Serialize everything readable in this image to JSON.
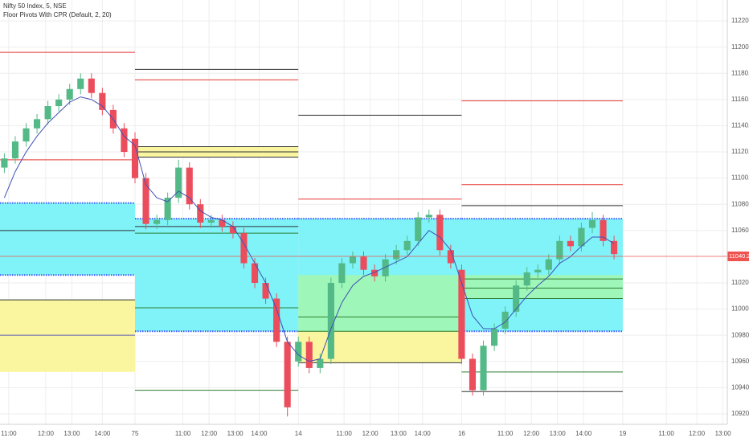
{
  "chart_data": {
    "type": "candlestick",
    "title": "Nifty 50 Index, 5, NSE",
    "subtitle": "Floor Pivots With CPR (Default, 2, 20)",
    "up_color": "#53b987",
    "down_color": "#eb4d5c",
    "grid": true,
    "xlim": [
      13,
      347
    ],
    "ylim": [
      10912,
      11236
    ],
    "xticks": [
      {
        "value": 17,
        "label": "11:00"
      },
      {
        "value": 34,
        "label": "12:00"
      },
      {
        "value": 46,
        "label": "13:00"
      },
      {
        "value": 60,
        "label": "14:00"
      },
      75,
      {
        "value": 97,
        "label": "11:00"
      },
      {
        "value": 109,
        "label": "12:00"
      },
      {
        "value": 121,
        "label": "13:00"
      },
      {
        "value": 132,
        "label": "14:00"
      },
      {
        "value": 150,
        "label": "14"
      },
      {
        "value": 171,
        "label": "11:00"
      },
      {
        "value": 183,
        "label": "12:00"
      },
      {
        "value": 196,
        "label": "13:00"
      },
      {
        "value": 207,
        "label": "14:00"
      },
      {
        "value": 225,
        "label": "16"
      },
      {
        "value": 245,
        "label": "11:00"
      },
      {
        "value": 257,
        "label": "12:00"
      },
      {
        "value": 269,
        "label": "13:00"
      },
      {
        "value": 281,
        "label": "14:00"
      },
      {
        "value": 299,
        "label": "19"
      },
      {
        "value": 319,
        "label": "11:00"
      },
      {
        "value": 333,
        "label": "12:00"
      },
      {
        "value": 345,
        "label": "13:00"
      }
    ],
    "yticks": [
      {
        "value": 11220,
        "label": "11220.00"
      },
      {
        "value": 11200,
        "label": "11200.00"
      },
      {
        "value": 11180,
        "label": "11180.00"
      },
      {
        "value": 11160,
        "label": "11160.00"
      },
      {
        "value": 11140,
        "label": "11140.00"
      },
      {
        "value": 11120,
        "label": "11120.00"
      },
      {
        "value": 11100,
        "label": "11100.00"
      },
      {
        "value": 11080,
        "label": "11080.00"
      },
      {
        "value": 11060,
        "label": "11060.00"
      },
      {
        "value": 11020,
        "label": "11020.00"
      },
      {
        "value": 11000,
        "label": "11000.00"
      },
      {
        "value": 10980,
        "label": "10980.00"
      },
      {
        "value": 10960,
        "label": "10960.00"
      },
      {
        "value": 10940,
        "label": "10940.00"
      },
      {
        "value": 10920,
        "label": "10920.00"
      }
    ],
    "x": [
      15,
      20,
      25,
      30,
      35,
      40,
      45,
      50,
      55,
      60,
      65,
      70,
      75,
      80,
      85,
      90,
      95,
      100,
      105,
      110,
      115,
      120,
      125,
      130,
      135,
      140,
      145,
      150,
      155,
      160,
      165,
      170,
      175,
      180,
      185,
      190,
      195,
      200,
      205,
      210,
      215,
      220,
      225,
      230,
      235,
      240,
      245,
      250,
      255,
      260,
      265,
      270,
      275,
      280,
      285,
      290,
      295
    ],
    "open": [
      11108,
      11115,
      11128,
      11138,
      11145,
      11155,
      11160,
      11168,
      11176,
      11165,
      11152,
      11138,
      11130,
      11100,
      11065,
      11068,
      11085,
      11108,
      11080,
      11066,
      11068,
      11063,
      11058,
      11035,
      11020,
      11008,
      10975,
      10960,
      10975,
      10955,
      10962,
      11020,
      11035,
      11040,
      11030,
      11025,
      11038,
      11045,
      11052,
      11070,
      11072,
      11045,
      11030,
      10962,
      10938,
      10972,
      10985,
      10998,
      11018,
      11028,
      11030,
      11038,
      11052,
      11048,
      11062,
      11068,
      11052
    ],
    "high": [
      11119,
      11132,
      11142,
      11149,
      11159,
      11164,
      11172,
      11180,
      11180,
      11169,
      11156,
      11142,
      11135,
      11104,
      11072,
      11089,
      11114,
      11112,
      11084,
      11072,
      11072,
      11067,
      11062,
      11039,
      11024,
      11012,
      10979,
      10979,
      10979,
      10966,
      11024,
      11039,
      11044,
      11044,
      11034,
      11042,
      11049,
      11056,
      11074,
      11076,
      11076,
      11049,
      11034,
      10966,
      10976,
      10989,
      11002,
      11022,
      11032,
      11034,
      11042,
      11056,
      11056,
      11066,
      11074,
      11072,
      11056
    ],
    "low": [
      11104,
      11111,
      11124,
      11134,
      11141,
      11151,
      11156,
      11164,
      11161,
      11148,
      11134,
      11116,
      11096,
      11061,
      11061,
      11064,
      11081,
      11076,
      11062,
      11062,
      11059,
      11054,
      11031,
      11016,
      11004,
      10971,
      10918,
      10956,
      10951,
      10951,
      10958,
      11016,
      11031,
      11026,
      11021,
      11021,
      11034,
      11041,
      11048,
      11066,
      11041,
      11031,
      10958,
      10934,
      10934,
      10968,
      10981,
      10994,
      11014,
      11024,
      11026,
      11034,
      11044,
      11044,
      11058,
      11048,
      11038
    ],
    "close": [
      11115,
      11128,
      11138,
      11145,
      11155,
      11160,
      11168,
      11176,
      11165,
      11152,
      11138,
      11120,
      11100,
      11065,
      11068,
      11085,
      11108,
      11080,
      11066,
      11068,
      11063,
      11058,
      11035,
      11020,
      11008,
      10975,
      10925,
      10975,
      10955,
      10962,
      11020,
      11035,
      11040,
      11030,
      11025,
      11038,
      11045,
      11052,
      11070,
      11072,
      11045,
      11035,
      10962,
      10938,
      10972,
      10985,
      10998,
      11018,
      11028,
      11030,
      11038,
      11052,
      11048,
      11062,
      11068,
      11052,
      11042
    ],
    "ema": {
      "color": "#3f51b5",
      "values": [
        11085,
        11105,
        11120,
        11132,
        11142,
        11150,
        11158,
        11162,
        11160,
        11155,
        11145,
        11132,
        11125,
        11095,
        11085,
        11082,
        11090,
        11085,
        11075,
        11070,
        11068,
        11063,
        11050,
        11035,
        11020,
        11000,
        10975,
        10965,
        10960,
        10962,
        10985,
        11005,
        11018,
        11025,
        11028,
        11032,
        11036,
        11040,
        11050,
        11060,
        11055,
        11045,
        11020,
        10995,
        10985,
        10985,
        10990,
        11000,
        11010,
        11018,
        11025,
        11035,
        11040,
        11048,
        11055,
        11055,
        11050
      ]
    },
    "last_price": 11040.25,
    "last_price_color": "#ef5350",
    "band_border_color": "#3d5afe",
    "days": [
      {
        "start": 13,
        "end": 75,
        "bands": [
          {
            "low": 11026,
            "high": 11081,
            "color": "#7ff3f8",
            "dotted": true
          },
          {
            "low": 10952,
            "high": 11007,
            "color": "#faf6a0",
            "dotted": false
          }
        ],
        "levels": [
          {
            "value": 11196,
            "color": "#e53935"
          },
          {
            "value": 11114,
            "color": "#e53935"
          },
          {
            "value": 11060,
            "color": "#333333"
          },
          {
            "value": 11007,
            "color": "#333333"
          },
          {
            "value": 10980,
            "color": "#5c5cb8"
          }
        ]
      },
      {
        "start": 75,
        "end": 150,
        "bands": [
          {
            "low": 10983,
            "high": 11069,
            "color": "#7ff3f8",
            "dotted": true
          },
          {
            "low": 11116,
            "high": 11124,
            "color": "#faf6a0",
            "dotted": false
          }
        ],
        "levels": [
          {
            "value": 11183,
            "color": "#333333"
          },
          {
            "value": 11175,
            "color": "#e53935"
          },
          {
            "value": 11124,
            "color": "#333333"
          },
          {
            "value": 11120,
            "color": "#333333"
          },
          {
            "value": 11116,
            "color": "#333333"
          },
          {
            "value": 11063,
            "color": "#333333"
          },
          {
            "value": 11058,
            "color": "#2e7d32"
          },
          {
            "value": 11001,
            "color": "#2e7d32"
          },
          {
            "value": 10938,
            "color": "#2e7d32"
          }
        ]
      },
      {
        "start": 150,
        "end": 225,
        "bands": [
          {
            "low": 10983,
            "high": 11069,
            "color": "#7ff3f8",
            "dotted": true
          },
          {
            "low": 10983,
            "high": 11026,
            "color": "#9ef7b8",
            "dotted": false
          },
          {
            "low": 10959,
            "high": 10983,
            "color": "#faf6a0",
            "dotted": false
          }
        ],
        "levels": [
          {
            "value": 11148,
            "color": "#333333"
          },
          {
            "value": 11084,
            "color": "#e53935"
          },
          {
            "value": 10994,
            "color": "#2e7d32"
          },
          {
            "value": 10983,
            "color": "#2e7d32"
          },
          {
            "value": 10959,
            "color": "#333333"
          }
        ]
      },
      {
        "start": 225,
        "end": 299,
        "bands": [
          {
            "low": 10983,
            "high": 11069,
            "color": "#7ff3f8",
            "dotted": true
          },
          {
            "low": 11008,
            "high": 11026,
            "color": "#9ef7b8",
            "dotted": false
          }
        ],
        "levels": [
          {
            "value": 11159,
            "color": "#e53935"
          },
          {
            "value": 11095,
            "color": "#e53935"
          },
          {
            "value": 11079,
            "color": "#333333"
          },
          {
            "value": 11023,
            "color": "#2e7d32"
          },
          {
            "value": 11016,
            "color": "#2e7d32"
          },
          {
            "value": 11008,
            "color": "#2e7d32"
          },
          {
            "value": 10952,
            "color": "#2e7d32"
          },
          {
            "value": 10937,
            "color": "#333333"
          }
        ]
      }
    ]
  }
}
